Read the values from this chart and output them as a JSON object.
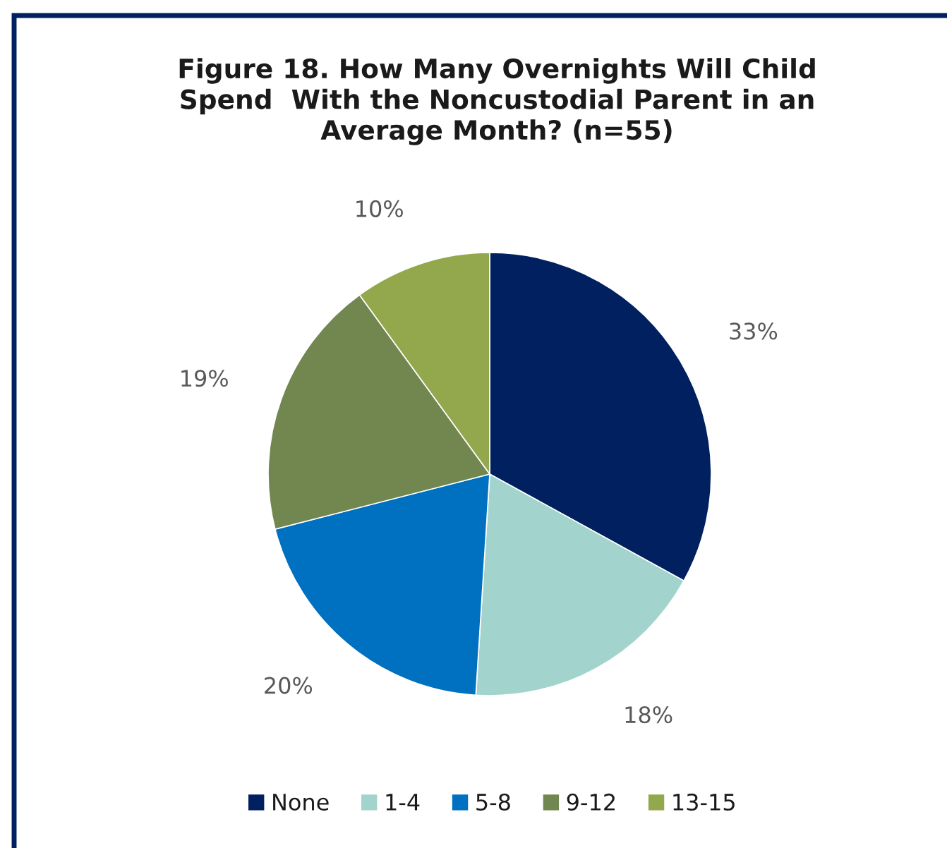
{
  "chart_data": {
    "type": "pie",
    "title": "Figure 18. How Many Overnights Will Child\nSpend  With the Noncustodial Parent in an\nAverage Month? (n=55)",
    "categories": [
      "None",
      "1-4",
      "5-8",
      "9-12",
      "13-15"
    ],
    "values": [
      33,
      18,
      20,
      19,
      10
    ],
    "value_labels": [
      "33%",
      "18%",
      "20%",
      "19%",
      "10%"
    ],
    "colors": [
      "#002060",
      "#a3d3cd",
      "#0070c0",
      "#71874f",
      "#93a84d"
    ],
    "legend": "bottom"
  }
}
